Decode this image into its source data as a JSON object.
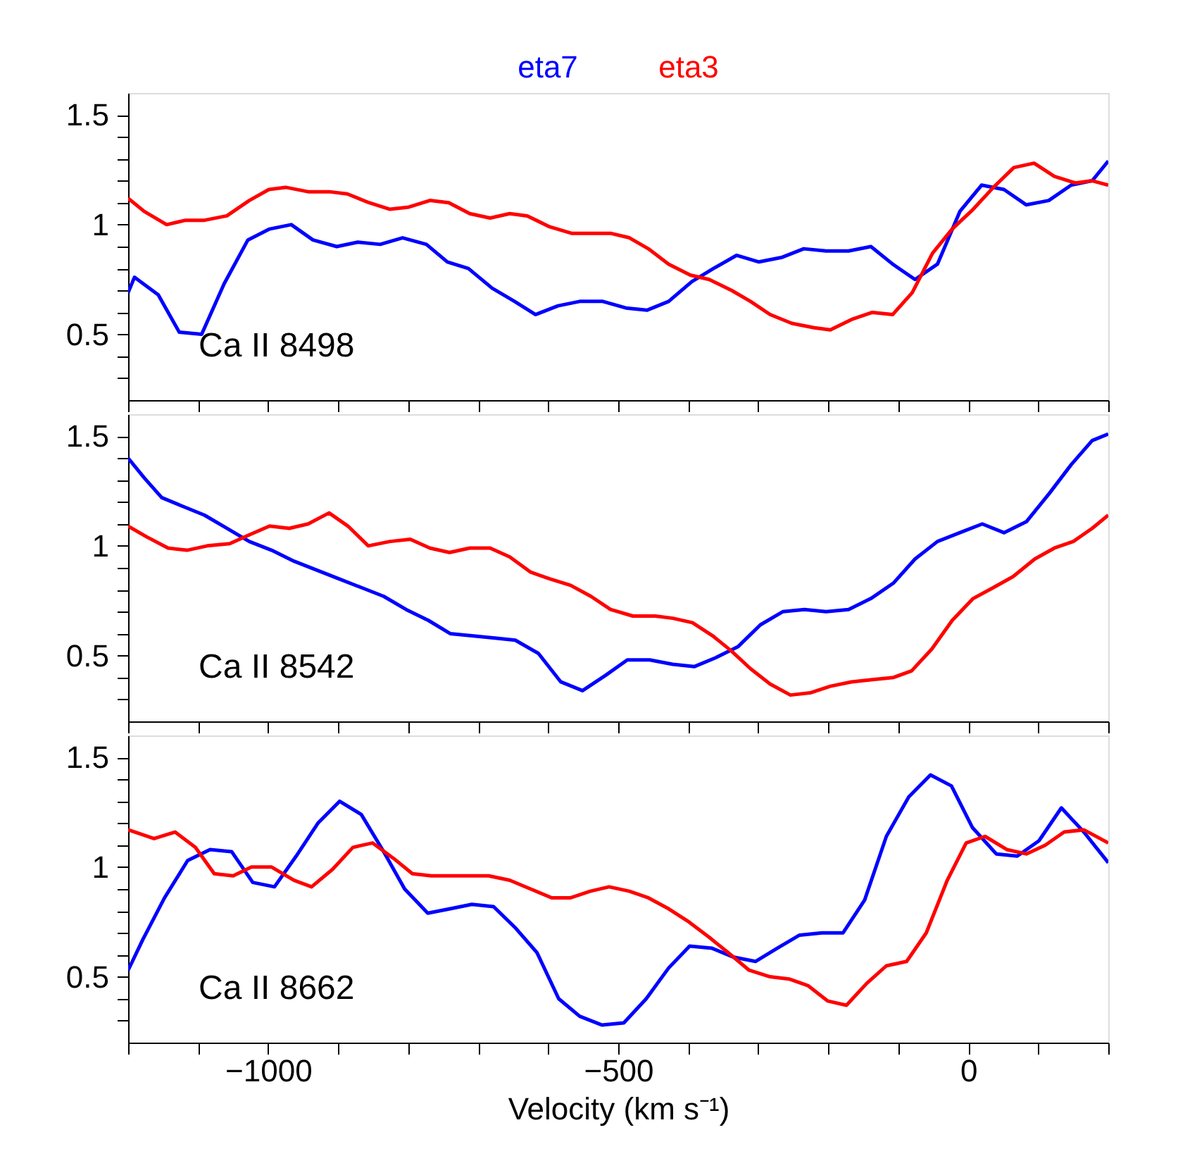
{
  "chart_data": [
    {
      "type": "line",
      "legend": "top",
      "tick_labels": "y",
      "annotations": [
        "Ca II 8498"
      ],
      "xlim": [
        -1200,
        200
      ],
      "ylim": [
        0.2,
        1.6
      ],
      "xticks": [
        {
          "value": -1200,
          "label": null
        },
        {
          "value": -1100,
          "label": null
        },
        {
          "value": -1000,
          "label": null
        },
        {
          "value": -900,
          "label": null
        },
        {
          "value": -800,
          "label": null
        },
        {
          "value": -700,
          "label": null
        },
        {
          "value": -600,
          "label": null
        },
        {
          "value": -500,
          "label": null
        },
        {
          "value": -400,
          "label": null
        },
        {
          "value": -300,
          "label": null
        },
        {
          "value": -200,
          "label": null
        },
        {
          "value": -100,
          "label": null
        },
        {
          "value": 0,
          "label": null
        },
        {
          "value": 100,
          "label": null
        },
        {
          "value": 200,
          "label": null
        }
      ],
      "yticks": [
        {
          "value": 0.3,
          "label": null
        },
        {
          "value": 0.4,
          "label": null
        },
        0.5,
        {
          "value": 0.6,
          "label": null
        },
        {
          "value": 0.7,
          "label": null
        },
        {
          "value": 0.8,
          "label": null
        },
        {
          "value": 0.9,
          "label": null
        },
        1,
        {
          "value": 1.1,
          "label": null
        },
        {
          "value": 1.2,
          "label": null
        },
        {
          "value": 1.3,
          "label": null
        },
        {
          "value": 1.4,
          "label": null
        },
        1.5
      ],
      "series": [
        {
          "name": "eta7",
          "color": "#0000ff",
          "x": [
            -1200,
            -1191,
            -1157,
            -1127,
            -1095,
            -1063,
            -1029,
            -998,
            -967,
            -936,
            -902,
            -872,
            -840,
            -808,
            -774,
            -744,
            -714,
            -680,
            -648,
            -618,
            -586,
            -555,
            -522,
            -489,
            -459,
            -428,
            -395,
            -364,
            -331,
            -299,
            -267,
            -235,
            -203,
            -171,
            -139,
            -108,
            -76,
            -44,
            -12,
            19,
            51,
            83,
            115,
            147,
            177,
            200
          ],
          "values": [
            0.69,
            0.76,
            0.68,
            0.51,
            0.5,
            0.73,
            0.93,
            0.98,
            1.0,
            0.93,
            0.9,
            0.92,
            0.91,
            0.94,
            0.91,
            0.83,
            0.8,
            0.71,
            0.65,
            0.59,
            0.63,
            0.65,
            0.65,
            0.62,
            0.61,
            0.65,
            0.74,
            0.8,
            0.86,
            0.83,
            0.85,
            0.89,
            0.88,
            0.88,
            0.9,
            0.82,
            0.75,
            0.82,
            1.06,
            1.18,
            1.16,
            1.09,
            1.11,
            1.18,
            1.2,
            1.29
          ]
        },
        {
          "name": "eta3",
          "color": "#ff0000",
          "x": [
            -1200,
            -1177,
            -1145,
            -1118,
            -1091,
            -1059,
            -1027,
            -999,
            -975,
            -943,
            -913,
            -887,
            -856,
            -826,
            -799,
            -769,
            -742,
            -712,
            -683,
            -655,
            -630,
            -598,
            -566,
            -537,
            -510,
            -484,
            -457,
            -428,
            -397,
            -370,
            -338,
            -311,
            -283,
            -252,
            -220,
            -197,
            -165,
            -137,
            -108,
            -80,
            -51,
            -23,
            7,
            36,
            65,
            94,
            123,
            153,
            177,
            200
          ],
          "values": [
            1.12,
            1.06,
            1.0,
            1.02,
            1.02,
            1.04,
            1.11,
            1.16,
            1.17,
            1.15,
            1.15,
            1.14,
            1.1,
            1.07,
            1.08,
            1.11,
            1.1,
            1.05,
            1.03,
            1.05,
            1.04,
            0.99,
            0.96,
            0.96,
            0.96,
            0.94,
            0.89,
            0.82,
            0.77,
            0.75,
            0.7,
            0.65,
            0.59,
            0.55,
            0.53,
            0.52,
            0.57,
            0.6,
            0.59,
            0.69,
            0.87,
            0.98,
            1.07,
            1.17,
            1.26,
            1.28,
            1.22,
            1.19,
            1.2,
            1.18
          ]
        }
      ]
    },
    {
      "type": "line",
      "tick_labels": "y",
      "annotations": [
        "Ca II 8542"
      ],
      "xlim": [
        -1200,
        200
      ],
      "ylim": [
        0.2,
        1.6
      ],
      "xticks": [
        {
          "value": -1200,
          "label": null
        },
        {
          "value": -1100,
          "label": null
        },
        {
          "value": -1000,
          "label": null
        },
        {
          "value": -900,
          "label": null
        },
        {
          "value": -800,
          "label": null
        },
        {
          "value": -700,
          "label": null
        },
        {
          "value": -600,
          "label": null
        },
        {
          "value": -500,
          "label": null
        },
        {
          "value": -400,
          "label": null
        },
        {
          "value": -300,
          "label": null
        },
        {
          "value": -200,
          "label": null
        },
        {
          "value": -100,
          "label": null
        },
        {
          "value": 0,
          "label": null
        },
        {
          "value": 100,
          "label": null
        },
        {
          "value": 200,
          "label": null
        }
      ],
      "yticks": [
        {
          "value": 0.3,
          "label": null
        },
        {
          "value": 0.4,
          "label": null
        },
        0.5,
        {
          "value": 0.6,
          "label": null
        },
        {
          "value": 0.7,
          "label": null
        },
        {
          "value": 0.8,
          "label": null
        },
        {
          "value": 0.9,
          "label": null
        },
        1,
        {
          "value": 1.1,
          "label": null
        },
        {
          "value": 1.2,
          "label": null
        },
        {
          "value": 1.3,
          "label": null
        },
        {
          "value": 1.4,
          "label": null
        },
        1.5
      ],
      "series": [
        {
          "color": "#0000ff",
          "x": [
            -1200,
            -1177,
            -1152,
            -1122,
            -1091,
            -1059,
            -1027,
            -995,
            -963,
            -931,
            -899,
            -867,
            -835,
            -803,
            -771,
            -740,
            -709,
            -676,
            -647,
            -614,
            -582,
            -551,
            -518,
            -487,
            -455,
            -422,
            -391,
            -361,
            -329,
            -297,
            -265,
            -234,
            -203,
            -171,
            -139,
            -107,
            -76,
            -44,
            -12,
            20,
            51,
            83,
            116,
            147,
            177,
            200
          ],
          "values": [
            1.4,
            1.31,
            1.22,
            1.18,
            1.14,
            1.08,
            1.02,
            0.98,
            0.93,
            0.89,
            0.85,
            0.81,
            0.77,
            0.71,
            0.66,
            0.6,
            0.59,
            0.58,
            0.57,
            0.51,
            0.38,
            0.34,
            0.41,
            0.48,
            0.48,
            0.46,
            0.45,
            0.49,
            0.54,
            0.64,
            0.7,
            0.71,
            0.7,
            0.71,
            0.76,
            0.83,
            0.94,
            1.02,
            1.06,
            1.1,
            1.06,
            1.11,
            1.24,
            1.37,
            1.48,
            1.51
          ]
        },
        {
          "color": "#ff0000",
          "x": [
            -1200,
            -1173,
            -1143,
            -1116,
            -1087,
            -1055,
            -1027,
            -998,
            -970,
            -943,
            -913,
            -886,
            -857,
            -826,
            -797,
            -769,
            -741,
            -712,
            -683,
            -655,
            -625,
            -598,
            -568,
            -539,
            -511,
            -479,
            -447,
            -422,
            -394,
            -365,
            -338,
            -311,
            -283,
            -254,
            -226,
            -197,
            -167,
            -137,
            -107,
            -81,
            -52,
            -23,
            7,
            36,
            64,
            95,
            123,
            150,
            177,
            200
          ],
          "values": [
            1.09,
            1.04,
            0.99,
            0.98,
            1.0,
            1.01,
            1.05,
            1.09,
            1.08,
            1.1,
            1.15,
            1.09,
            1.0,
            1.02,
            1.03,
            0.99,
            0.97,
            0.99,
            0.99,
            0.95,
            0.88,
            0.85,
            0.82,
            0.77,
            0.71,
            0.68,
            0.68,
            0.67,
            0.65,
            0.59,
            0.52,
            0.44,
            0.37,
            0.32,
            0.33,
            0.36,
            0.38,
            0.39,
            0.4,
            0.43,
            0.53,
            0.66,
            0.76,
            0.81,
            0.86,
            0.94,
            0.99,
            1.02,
            1.08,
            1.14
          ]
        }
      ]
    },
    {
      "type": "line",
      "annotations": [
        "Ca II 8662"
      ],
      "xlabel": "Velocity (km s⁻¹)",
      "xlim": [
        -1200,
        200
      ],
      "ylim": [
        0.2,
        1.6
      ],
      "xticks": [
        {
          "value": -1200,
          "label": null
        },
        {
          "value": -1100,
          "label": null
        },
        {
          "value": -1000,
          "label": "−1000"
        },
        {
          "value": -900,
          "label": null
        },
        {
          "value": -800,
          "label": null
        },
        {
          "value": -700,
          "label": null
        },
        {
          "value": -600,
          "label": null
        },
        {
          "value": -500,
          "label": "−500"
        },
        {
          "value": -400,
          "label": null
        },
        {
          "value": -300,
          "label": null
        },
        {
          "value": -200,
          "label": null
        },
        {
          "value": -100,
          "label": null
        },
        0,
        {
          "value": 100,
          "label": null
        },
        {
          "value": 200,
          "label": null
        }
      ],
      "yticks": [
        {
          "value": 0.3,
          "label": null
        },
        {
          "value": 0.4,
          "label": null
        },
        0.5,
        {
          "value": 0.6,
          "label": null
        },
        {
          "value": 0.7,
          "label": null
        },
        {
          "value": 0.8,
          "label": null
        },
        {
          "value": 0.9,
          "label": null
        },
        1,
        {
          "value": 1.1,
          "label": null
        },
        {
          "value": 1.2,
          "label": null
        },
        {
          "value": 1.3,
          "label": null
        },
        {
          "value": 1.4,
          "label": null
        },
        1.5
      ],
      "series": [
        {
          "color": "#0000ff",
          "x": [
            -1200,
            -1179,
            -1148,
            -1115,
            -1083,
            -1052,
            -1022,
            -991,
            -960,
            -929,
            -898,
            -867,
            -835,
            -805,
            -772,
            -740,
            -709,
            -678,
            -646,
            -616,
            -585,
            -555,
            -523,
            -492,
            -460,
            -428,
            -398,
            -366,
            -336,
            -304,
            -273,
            -241,
            -209,
            -179,
            -148,
            -117,
            -85,
            -54,
            -24,
            6,
            40,
            70,
            101,
            133,
            165,
            200
          ],
          "values": [
            0.53,
            0.67,
            0.86,
            1.03,
            1.08,
            1.07,
            0.93,
            0.91,
            1.05,
            1.2,
            1.3,
            1.24,
            1.07,
            0.9,
            0.79,
            0.81,
            0.83,
            0.82,
            0.72,
            0.61,
            0.4,
            0.32,
            0.28,
            0.29,
            0.4,
            0.54,
            0.64,
            0.63,
            0.59,
            0.57,
            0.63,
            0.69,
            0.7,
            0.7,
            0.85,
            1.14,
            1.32,
            1.42,
            1.37,
            1.18,
            1.06,
            1.05,
            1.12,
            1.27,
            1.16,
            1.02
          ]
        },
        {
          "color": "#ff0000",
          "x": [
            -1200,
            -1163,
            -1133,
            -1104,
            -1077,
            -1050,
            -1024,
            -995,
            -963,
            -938,
            -908,
            -879,
            -851,
            -821,
            -794,
            -767,
            -740,
            -712,
            -685,
            -655,
            -625,
            -595,
            -568,
            -540,
            -513,
            -484,
            -457,
            -428,
            -399,
            -370,
            -343,
            -313,
            -283,
            -256,
            -229,
            -201,
            -174,
            -145,
            -117,
            -88,
            -60,
            -30,
            -3,
            24,
            55,
            83,
            110,
            137,
            165,
            200
          ],
          "values": [
            1.17,
            1.13,
            1.16,
            1.09,
            0.97,
            0.96,
            1.0,
            1.0,
            0.94,
            0.91,
            0.99,
            1.09,
            1.11,
            1.04,
            0.97,
            0.96,
            0.96,
            0.96,
            0.96,
            0.94,
            0.9,
            0.86,
            0.86,
            0.89,
            0.91,
            0.89,
            0.86,
            0.81,
            0.75,
            0.68,
            0.61,
            0.53,
            0.5,
            0.49,
            0.46,
            0.39,
            0.37,
            0.47,
            0.55,
            0.57,
            0.7,
            0.94,
            1.11,
            1.14,
            1.08,
            1.06,
            1.1,
            1.16,
            1.17,
            1.11
          ]
        }
      ]
    }
  ]
}
